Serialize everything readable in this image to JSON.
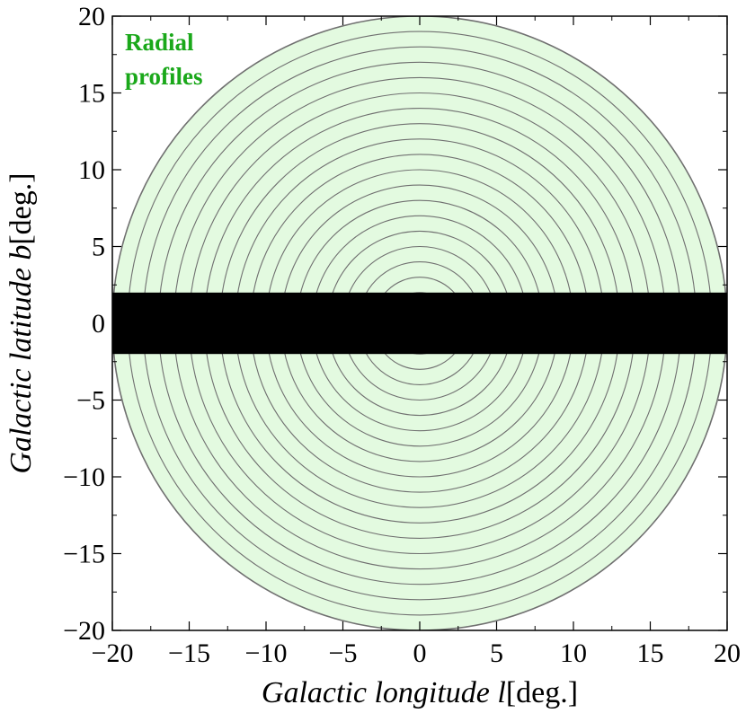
{
  "chart_data": {
    "type": "region-map",
    "xlabel": "Galactic longitude l",
    "xunit": "[deg.]",
    "ylabel": "Galactic latitude b",
    "yunit": "[deg.]",
    "xlim": [
      -20,
      20
    ],
    "ylim": [
      -20,
      20
    ],
    "xticks": [
      -20,
      -15,
      -10,
      -5,
      0,
      5,
      10,
      15,
      20
    ],
    "yticks": [
      -20,
      -15,
      -10,
      -5,
      0,
      5,
      10,
      15,
      20
    ],
    "annotation": {
      "lines": [
        "Radial",
        "profiles"
      ],
      "color": "#1aa81a"
    },
    "rings": {
      "inner_radii_deg": [
        2,
        4,
        6,
        8,
        10,
        12,
        14,
        16,
        18
      ],
      "extra_radii_deg": [
        3,
        5,
        7,
        9,
        11,
        13,
        15,
        17,
        19
      ],
      "outer_radius_deg": 20,
      "fill": "#e3fae0",
      "stroke": "#707070"
    },
    "masked_band": {
      "b_min": -2,
      "b_max": 2,
      "l_min": -20,
      "l_max": 20,
      "color": "#000000"
    },
    "grid": false
  }
}
